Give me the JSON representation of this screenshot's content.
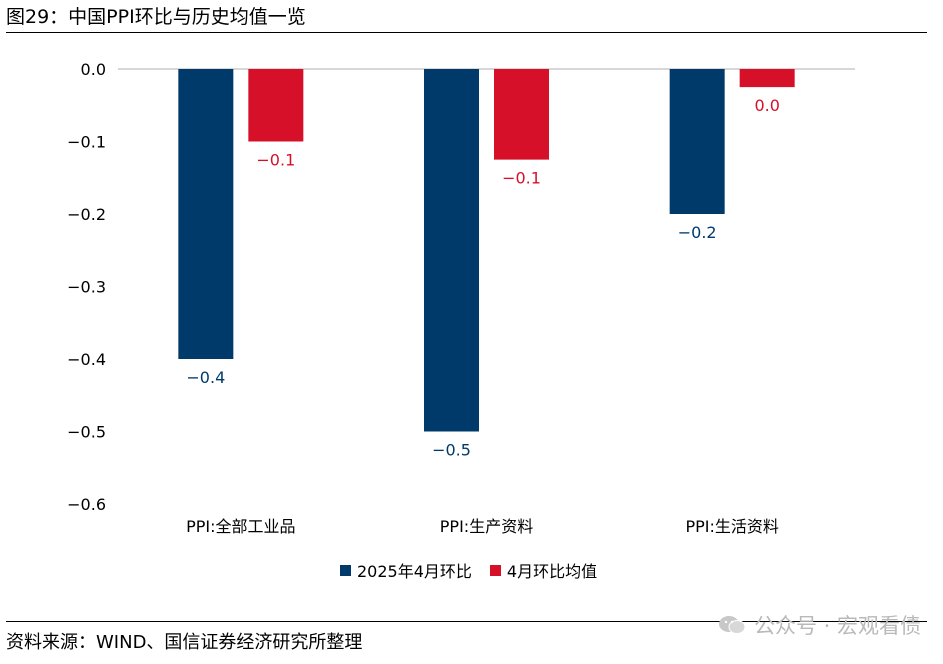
{
  "header": {
    "title": "图29：中国PPI环比与历史均值一览"
  },
  "footer": {
    "source": "资料来源：WIND、国信证券经济研究所整理",
    "watermark": "公众号 · 宏观看债"
  },
  "colors": {
    "series1": "#003A6B",
    "series2": "#D7102A",
    "axis": "#BFBFBF"
  },
  "chart_data": {
    "type": "bar",
    "title": "",
    "xlabel": "",
    "ylabel": "",
    "ylim": [
      -0.6,
      0.0
    ],
    "yticks": [
      "0.0",
      "−0.1",
      "−0.2",
      "−0.3",
      "−0.4",
      "−0.5",
      "−0.6"
    ],
    "grid": false,
    "legend_position": "bottom",
    "categories": [
      "PPI:全部工业品",
      "PPI:生产资料",
      "PPI:生活资料"
    ],
    "series": [
      {
        "name": "2025年4月环比",
        "values": [
          -0.4,
          -0.5,
          -0.2
        ],
        "labels": [
          "−0.4",
          "−0.5",
          "−0.2"
        ]
      },
      {
        "name": "4月环比均值",
        "values": [
          -0.1,
          -0.125,
          -0.025
        ],
        "labels": [
          "−0.1",
          "−0.1",
          "0.0"
        ]
      }
    ]
  }
}
